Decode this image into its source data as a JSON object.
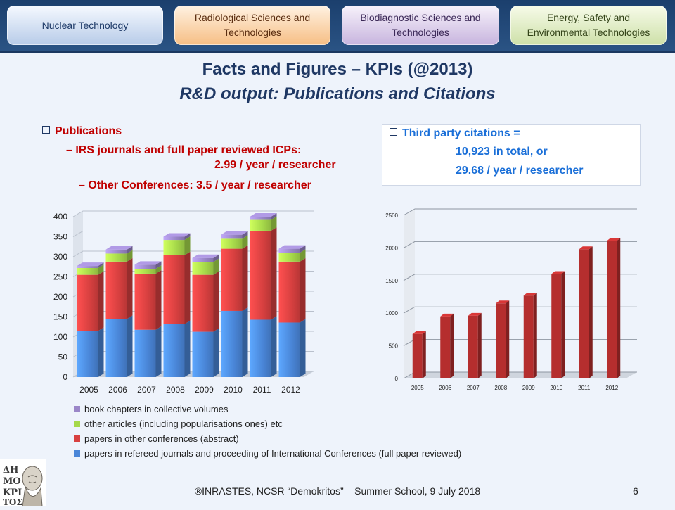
{
  "tabs": [
    {
      "label": "Nuclear Technology"
    },
    {
      "label": "Radiological  Sciences and Technologies"
    },
    {
      "label": "Biodiagnostic Sciences and Technologies"
    },
    {
      "label": "Energy, Safety and Environmental Technologies"
    }
  ],
  "title": "Facts and Figures – KPIs (@2013)",
  "subtitle": "R&D output: Publications  and Citations",
  "publications": {
    "heading": "Publications",
    "line1": "– IRS  journals and full paper reviewed ICPs:",
    "line2": "2.99 / year / researcher",
    "line3": "– Other Conferences: 3.5 / year / researcher"
  },
  "citations": {
    "heading": "Third party citations =",
    "line1": "10,923 in total, or",
    "line2": "29.68 / year / researcher"
  },
  "footer": "®INRASTES, NCSR “Demokritos” – Summer School, 9 July 2018",
  "page_number": "6",
  "colors": {
    "heading_red": "#c00000",
    "citation_blue": "#1a6fd8",
    "title_navy": "#1f3864",
    "series_blue": "#4a86d8",
    "series_red": "#d84040",
    "series_green": "#a6d94a",
    "series_purple": "#9a86c8",
    "bar_dark_red": "#b52e2e"
  },
  "chart_data": [
    {
      "type": "bar",
      "stacked": true,
      "categories": [
        "2005",
        "2006",
        "2007",
        "2008",
        "2009",
        "2010",
        "2011",
        "2012"
      ],
      "ylim": [
        0,
        400
      ],
      "yticks": [
        "0",
        "50",
        "100",
        "150",
        "200",
        "250",
        "300",
        "350",
        "400"
      ],
      "series": [
        {
          "name": "papers in refereed journals and proceeding of International Conferences (full paper reviewed)",
          "color": "#4a86d8",
          "values": [
            115,
            145,
            118,
            132,
            113,
            165,
            143,
            136
          ]
        },
        {
          "name": "papers in other conferences (abstract)",
          "color": "#d84040",
          "values": [
            140,
            143,
            140,
            172,
            142,
            155,
            222,
            152
          ]
        },
        {
          "name": "other articles (including popularisations ones) etc",
          "color": "#a6d94a",
          "values": [
            17,
            20,
            12,
            38,
            32,
            25,
            27,
            22
          ]
        },
        {
          "name": "book chapters in collective volumes",
          "color": "#9a86c8",
          "values": [
            5,
            10,
            10,
            8,
            10,
            10,
            8,
            10
          ]
        }
      ],
      "legend_order": [
        "book chapters in collective volumes",
        "other articles (including popularisations ones) etc",
        "papers in other conferences (abstract)",
        "papers in refereed journals and proceeding of International Conferences (full paper reviewed)"
      ]
    },
    {
      "type": "bar",
      "categories": [
        "2005",
        "2006",
        "2007",
        "2008",
        "2009",
        "2010",
        "2011",
        "2012"
      ],
      "ylim": [
        0,
        2500
      ],
      "yticks": [
        "0",
        "500",
        "1000",
        "1500",
        "2000",
        "2500"
      ],
      "values": [
        680,
        950,
        960,
        1150,
        1270,
        1600,
        1980,
        2110
      ],
      "color": "#b52e2e"
    }
  ]
}
